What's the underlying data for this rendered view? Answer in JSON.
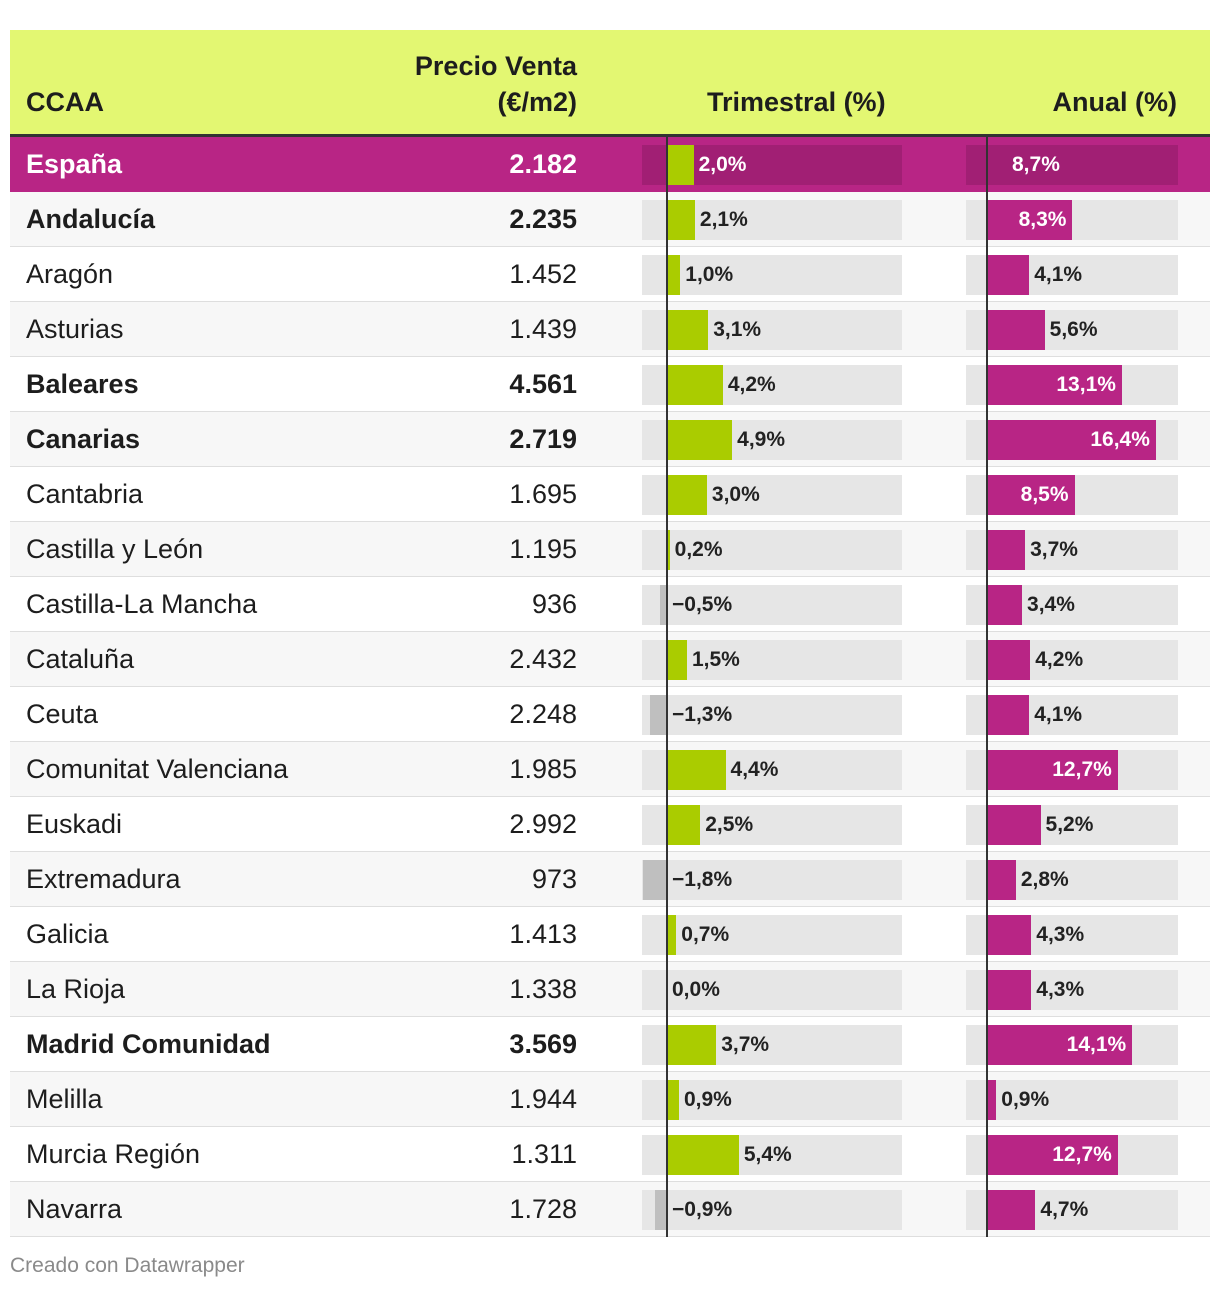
{
  "chart_data": {
    "type": "table",
    "columns": [
      "CCAA",
      "Precio Venta (€/m2)",
      "Trimestral (%)",
      "Anual (%)"
    ],
    "header": {
      "ccaa": "CCAA",
      "price_line1": "Precio Venta",
      "price_line2": "(€/m2)",
      "trimestral": "Trimestral (%)",
      "anual": "Anual (%)"
    },
    "colors": {
      "header_bg": "#e3f772",
      "highlight_row": "#b82585",
      "trimestral_positive": "#aacc00",
      "trimestral_negative": "#bfbfbf",
      "anual_bar": "#b82585"
    },
    "rows": [
      {
        "ccaa": "España",
        "price": "2.182",
        "tri": 2.0,
        "tri_label": "2,0%",
        "anu": 8.7,
        "anu_label": "8,7%",
        "bold": true,
        "highlight": true
      },
      {
        "ccaa": "Andalucía",
        "price": "2.235",
        "tri": 2.1,
        "tri_label": "2,1%",
        "anu": 8.3,
        "anu_label": "8,3%",
        "bold": true
      },
      {
        "ccaa": "Aragón",
        "price": "1.452",
        "tri": 1.0,
        "tri_label": "1,0%",
        "anu": 4.1,
        "anu_label": "4,1%"
      },
      {
        "ccaa": "Asturias",
        "price": "1.439",
        "tri": 3.1,
        "tri_label": "3,1%",
        "anu": 5.6,
        "anu_label": "5,6%"
      },
      {
        "ccaa": "Baleares",
        "price": "4.561",
        "tri": 4.2,
        "tri_label": "4,2%",
        "anu": 13.1,
        "anu_label": "13,1%",
        "bold": true
      },
      {
        "ccaa": "Canarias",
        "price": "2.719",
        "tri": 4.9,
        "tri_label": "4,9%",
        "anu": 16.4,
        "anu_label": "16,4%",
        "bold": true
      },
      {
        "ccaa": "Cantabria",
        "price": "1.695",
        "tri": 3.0,
        "tri_label": "3,0%",
        "anu": 8.5,
        "anu_label": "8,5%"
      },
      {
        "ccaa": "Castilla y León",
        "price": "1.195",
        "tri": 0.2,
        "tri_label": "0,2%",
        "anu": 3.7,
        "anu_label": "3,7%"
      },
      {
        "ccaa": "Castilla-La Mancha",
        "price": "936",
        "tri": -0.5,
        "tri_label": "−0,5%",
        "anu": 3.4,
        "anu_label": "3,4%"
      },
      {
        "ccaa": "Cataluña",
        "price": "2.432",
        "tri": 1.5,
        "tri_label": "1,5%",
        "anu": 4.2,
        "anu_label": "4,2%"
      },
      {
        "ccaa": "Ceuta",
        "price": "2.248",
        "tri": -1.3,
        "tri_label": "−1,3%",
        "anu": 4.1,
        "anu_label": "4,1%"
      },
      {
        "ccaa": "Comunitat Valenciana",
        "price": "1.985",
        "tri": 4.4,
        "tri_label": "4,4%",
        "anu": 12.7,
        "anu_label": "12,7%"
      },
      {
        "ccaa": "Euskadi",
        "price": "2.992",
        "tri": 2.5,
        "tri_label": "2,5%",
        "anu": 5.2,
        "anu_label": "5,2%"
      },
      {
        "ccaa": "Extremadura",
        "price": "973",
        "tri": -1.8,
        "tri_label": "−1,8%",
        "anu": 2.8,
        "anu_label": "2,8%"
      },
      {
        "ccaa": "Galicia",
        "price": "1.413",
        "tri": 0.7,
        "tri_label": "0,7%",
        "anu": 4.3,
        "anu_label": "4,3%"
      },
      {
        "ccaa": "La Rioja",
        "price": "1.338",
        "tri": 0.0,
        "tri_label": "0,0%",
        "anu": 4.3,
        "anu_label": "4,3%"
      },
      {
        "ccaa": "Madrid Comunidad",
        "price": "3.569",
        "tri": 3.7,
        "tri_label": "3,7%",
        "anu": 14.1,
        "anu_label": "14,1%",
        "bold": true
      },
      {
        "ccaa": "Melilla",
        "price": "1.944",
        "tri": 0.9,
        "tri_label": "0,9%",
        "anu": 0.9,
        "anu_label": "0,9%"
      },
      {
        "ccaa": "Murcia Región",
        "price": "1.311",
        "tri": 5.4,
        "tri_label": "5,4%",
        "anu": 12.7,
        "anu_label": "12,7%"
      },
      {
        "ccaa": "Navarra",
        "price": "1.728",
        "tri": -0.9,
        "tri_label": "−0,9%",
        "anu": 4.7,
        "anu_label": "4,7%"
      }
    ]
  },
  "footer": "Creado con Datawrapper"
}
